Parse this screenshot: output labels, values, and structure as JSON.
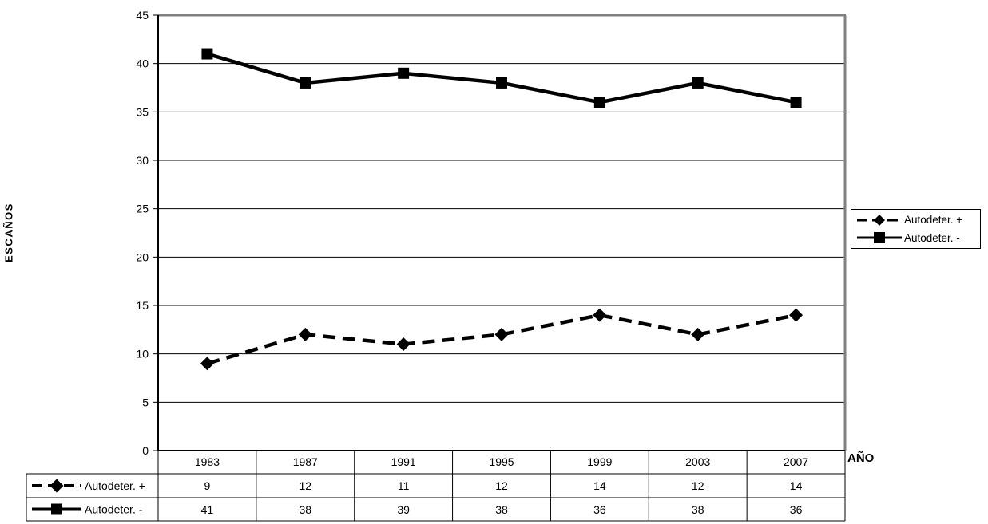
{
  "chart_data": {
    "type": "line",
    "title": "",
    "categories": [
      "1983",
      "1987",
      "1991",
      "1995",
      "1999",
      "2003",
      "2007"
    ],
    "series": [
      {
        "name": "Autodeter. +",
        "values": [
          9,
          12,
          11,
          12,
          14,
          12,
          14
        ],
        "marker": "diamond",
        "line_style": "dashed"
      },
      {
        "name": "Autodeter. -",
        "values": [
          41,
          38,
          39,
          38,
          36,
          38,
          36
        ],
        "marker": "square",
        "line_style": "solid"
      }
    ],
    "xlabel": "AÑO",
    "ylabel": "ESCAÑOS",
    "ylim": [
      0,
      45
    ],
    "yticks": [
      0,
      5,
      10,
      15,
      20,
      25,
      30,
      35,
      40,
      45
    ],
    "grid": true,
    "legend_position": "right",
    "show_data_table": true
  },
  "colors": {
    "series": "#000000",
    "grid": "#000000",
    "axis": "#000000",
    "plot_border": "#808080",
    "text": "#000000",
    "background": "#ffffff"
  }
}
